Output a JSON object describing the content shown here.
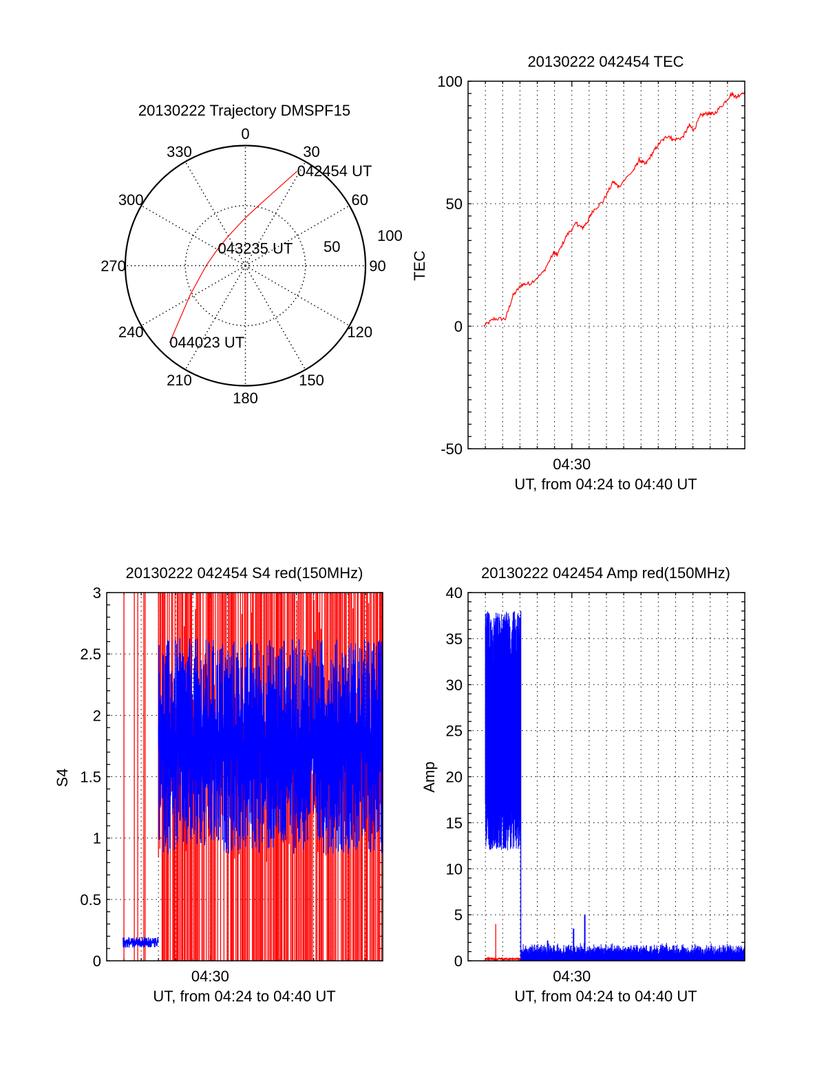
{
  "chart_data": [
    {
      "type": "polar",
      "title": "20130222 Trajectory DMSPF15",
      "angle_ticks": [
        "0",
        "30",
        "60",
        "90",
        "120",
        "150",
        "180",
        "210",
        "240",
        "270",
        "300",
        "330"
      ],
      "radial_ticks": [
        "50",
        "100"
      ],
      "rlim": [
        0,
        100
      ],
      "series": {
        "name": "trajectory",
        "color": "#ff0000",
        "points": [
          {
            "az": 28.7,
            "r": 89.6
          },
          {
            "az": 12.8,
            "r": 51.7
          },
          {
            "az": 0.0,
            "r": 39.9
          },
          {
            "az": 332.3,
            "r": 28.8
          },
          {
            "az": 301.5,
            "r": 26.9
          },
          {
            "az": 270.5,
            "r": 32.5
          },
          {
            "az": 242.2,
            "r": 51.9
          },
          {
            "az": 224.5,
            "r": 90.1
          }
        ]
      },
      "annotations": [
        {
          "text": "042454 UT",
          "point": 0
        },
        {
          "text": "043235 UT",
          "point": 4
        },
        {
          "text": "044023 UT",
          "point": 7
        }
      ]
    },
    {
      "type": "line",
      "title": "20130222 042454 TEC",
      "xlabel": "UT, from 04:24 to 04:40 UT",
      "ylabel": "TEC",
      "x_unit": "minutes after 04:24",
      "xlim": [
        0,
        16
      ],
      "x_tick_labels": [
        {
          "x": 6,
          "label": "04:30"
        }
      ],
      "ylim": [
        -50,
        100
      ],
      "y_tick_labels": [
        "-50",
        "0",
        "50",
        "100"
      ],
      "grid": true,
      "series": [
        {
          "name": "TEC",
          "color": "#ff0000",
          "x": [
            0.9,
            1.5,
            2.16,
            2.6,
            3.1,
            3.6,
            4.35,
            4.95,
            5.15,
            5.7,
            6.27,
            6.6,
            6.94,
            7.2,
            7.8,
            8.4,
            8.7,
            9.6,
            9.9,
            10.25,
            10.7,
            11.1,
            11.6,
            11.85,
            12.4,
            12.8,
            13.05,
            13.45,
            13.9,
            14.2,
            14.8,
            15.25,
            15.5,
            16.0
          ],
          "y": [
            0,
            3,
            3,
            12.5,
            17,
            17.5,
            22,
            30,
            29,
            37,
            42,
            40,
            43,
            47,
            51,
            59,
            57,
            64,
            68,
            66,
            71,
            75,
            78,
            76,
            77,
            82,
            80,
            86,
            87,
            86.5,
            91,
            95,
            93.5,
            96
          ]
        }
      ]
    },
    {
      "type": "line",
      "title": "20130222 042454 S4 red(150MHz)",
      "xlabel": "UT, from 04:24 to 04:40 UT",
      "ylabel": "S4",
      "x_unit": "minutes after 04:24",
      "xlim": [
        0,
        16
      ],
      "x_tick_labels": [
        {
          "x": 6,
          "label": "04:30"
        }
      ],
      "ylim": [
        0,
        3
      ],
      "y_tick_labels": [
        "0",
        "0.5",
        "1",
        "1.5",
        "2",
        "2.5",
        "3"
      ],
      "grid": true,
      "series": [
        {
          "name": "S4 blue",
          "color": "#0000ff",
          "segments": [
            {
              "x_range": [
                0.95,
                3.0
              ],
              "mean": 0.15,
              "min": 0.1,
              "max": 0.2
            },
            {
              "x_range": [
                3.0,
                16.0
              ],
              "mean": 1.75,
              "min": 0.8,
              "max": 3.0
            }
          ]
        },
        {
          "name": "S4 red",
          "color": "#ff0000",
          "spike_x": [
            1.0,
            1.6,
            1.8,
            2.15,
            2.23
          ],
          "dense_spike_range": [
            3.0,
            16.0
          ],
          "spike_range": [
            0,
            3
          ]
        }
      ]
    },
    {
      "type": "line",
      "title": "20130222 042454 Amp red(150MHz)",
      "xlabel": "UT, from 04:24 to 04:40 UT",
      "ylabel": "Amp",
      "x_unit": "minutes after 04:24",
      "xlim": [
        0,
        16
      ],
      "x_tick_labels": [
        {
          "x": 6,
          "label": "04:30"
        }
      ],
      "ylim": [
        0,
        40
      ],
      "y_tick_labels": [
        "0",
        "5",
        "10",
        "15",
        "20",
        "25",
        "30",
        "35",
        "40"
      ],
      "grid": true,
      "series": [
        {
          "name": "Amp blue",
          "color": "#0000ff",
          "segments": [
            {
              "x_range": [
                1.0,
                3.05
              ],
              "mean": 25,
              "min": 12,
              "max": 38
            },
            {
              "x_range": [
                3.05,
                16.0
              ],
              "mean": 0.9,
              "min": 0.0,
              "max": 2.0
            }
          ],
          "spikes": [
            {
              "x": 4.6,
              "y": 2.2
            },
            {
              "x": 6.1,
              "y": 3.5
            },
            {
              "x": 6.75,
              "y": 5.0
            }
          ]
        },
        {
          "name": "Amp red",
          "color": "#ff0000",
          "segments": [
            {
              "x_range": [
                1.0,
                3.05
              ],
              "mean": 0.2,
              "min": 0.1,
              "max": 0.3
            }
          ],
          "spikes": [
            {
              "x": 1.6,
              "y": 4.0
            }
          ]
        }
      ]
    }
  ]
}
